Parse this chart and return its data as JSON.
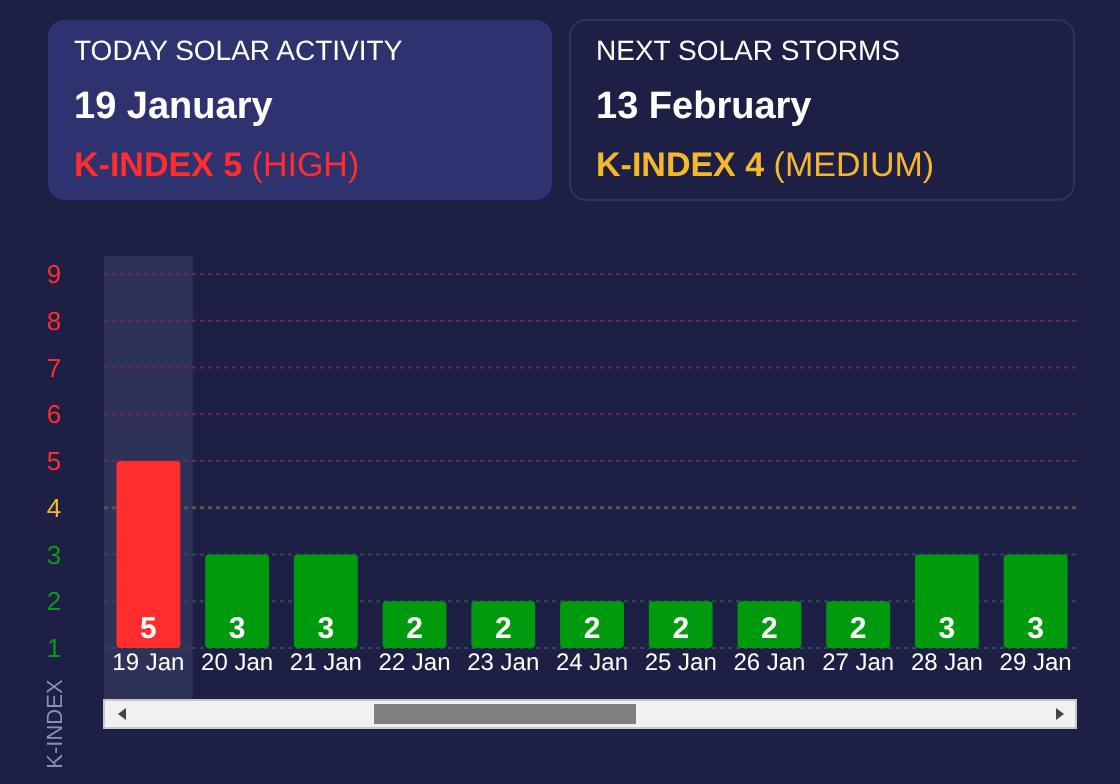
{
  "chart_data": [
    {
      "type": "other",
      "title": "TODAY SOLAR ACTIVITY",
      "subtitle": "19 January",
      "annotations": [
        "K-INDEX 5",
        "(HIGH)"
      ],
      "color": "#ff2d2d"
    },
    {
      "type": "other",
      "title": "NEXT SOLAR STORMS",
      "subtitle": "13 February",
      "annotations": [
        "K-INDEX 4",
        "(MEDIUM)"
      ],
      "color": "#f5b82a"
    },
    {
      "type": "bar",
      "ylabel": "K-INDEX",
      "categories": [
        "19 Jan",
        "20 Jan",
        "21 Jan",
        "22 Jan",
        "23 Jan",
        "24 Jan",
        "25 Jan",
        "26 Jan",
        "27 Jan",
        "28 Jan",
        "29 Jan"
      ],
      "values": [
        5,
        3,
        3,
        2,
        2,
        2,
        2,
        2,
        2,
        3,
        3
      ],
      "colors": [
        "#ff2d2d",
        "#009a0f",
        "#009a0f",
        "#009a0f",
        "#009a0f",
        "#009a0f",
        "#009a0f",
        "#009a0f",
        "#009a0f",
        "#009a0f",
        "#009a0f"
      ],
      "data_labels": true,
      "ylim": [
        1,
        9
      ],
      "yticks": [
        1,
        2,
        3,
        4,
        5,
        6,
        7,
        8,
        9
      ],
      "grid": true,
      "ref_lines": [
        {
          "axis": "y",
          "value": 4,
          "color": "#5e5440",
          "line_style": "dashed"
        }
      ],
      "bands": [
        {
          "axis": "x",
          "from": "19 Jan",
          "to": "19 Jan",
          "color": "#2f3258"
        }
      ]
    }
  ]
}
